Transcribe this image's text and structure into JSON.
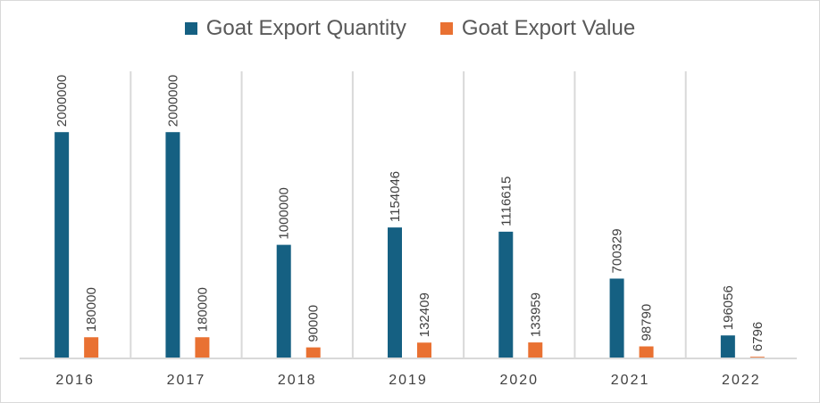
{
  "chart_data": {
    "type": "bar",
    "title": "",
    "xlabel": "",
    "ylabel": "",
    "categories": [
      "2016",
      "2017",
      "2018",
      "2019",
      "2020",
      "2021",
      "2022"
    ],
    "series": [
      {
        "name": "Goat Export Quantity",
        "color": "#156082",
        "values": [
          2000000,
          2000000,
          1000000,
          1154046,
          1116615,
          700329,
          196056
        ]
      },
      {
        "name": "Goat Export Value",
        "color": "#E97132",
        "values": [
          180000,
          180000,
          90000,
          132409,
          133959,
          98790,
          6796
        ]
      }
    ],
    "ylim": [
      0,
      2500000
    ],
    "grid": "vertical category separators",
    "legend": "top-center",
    "data_labels": true
  }
}
